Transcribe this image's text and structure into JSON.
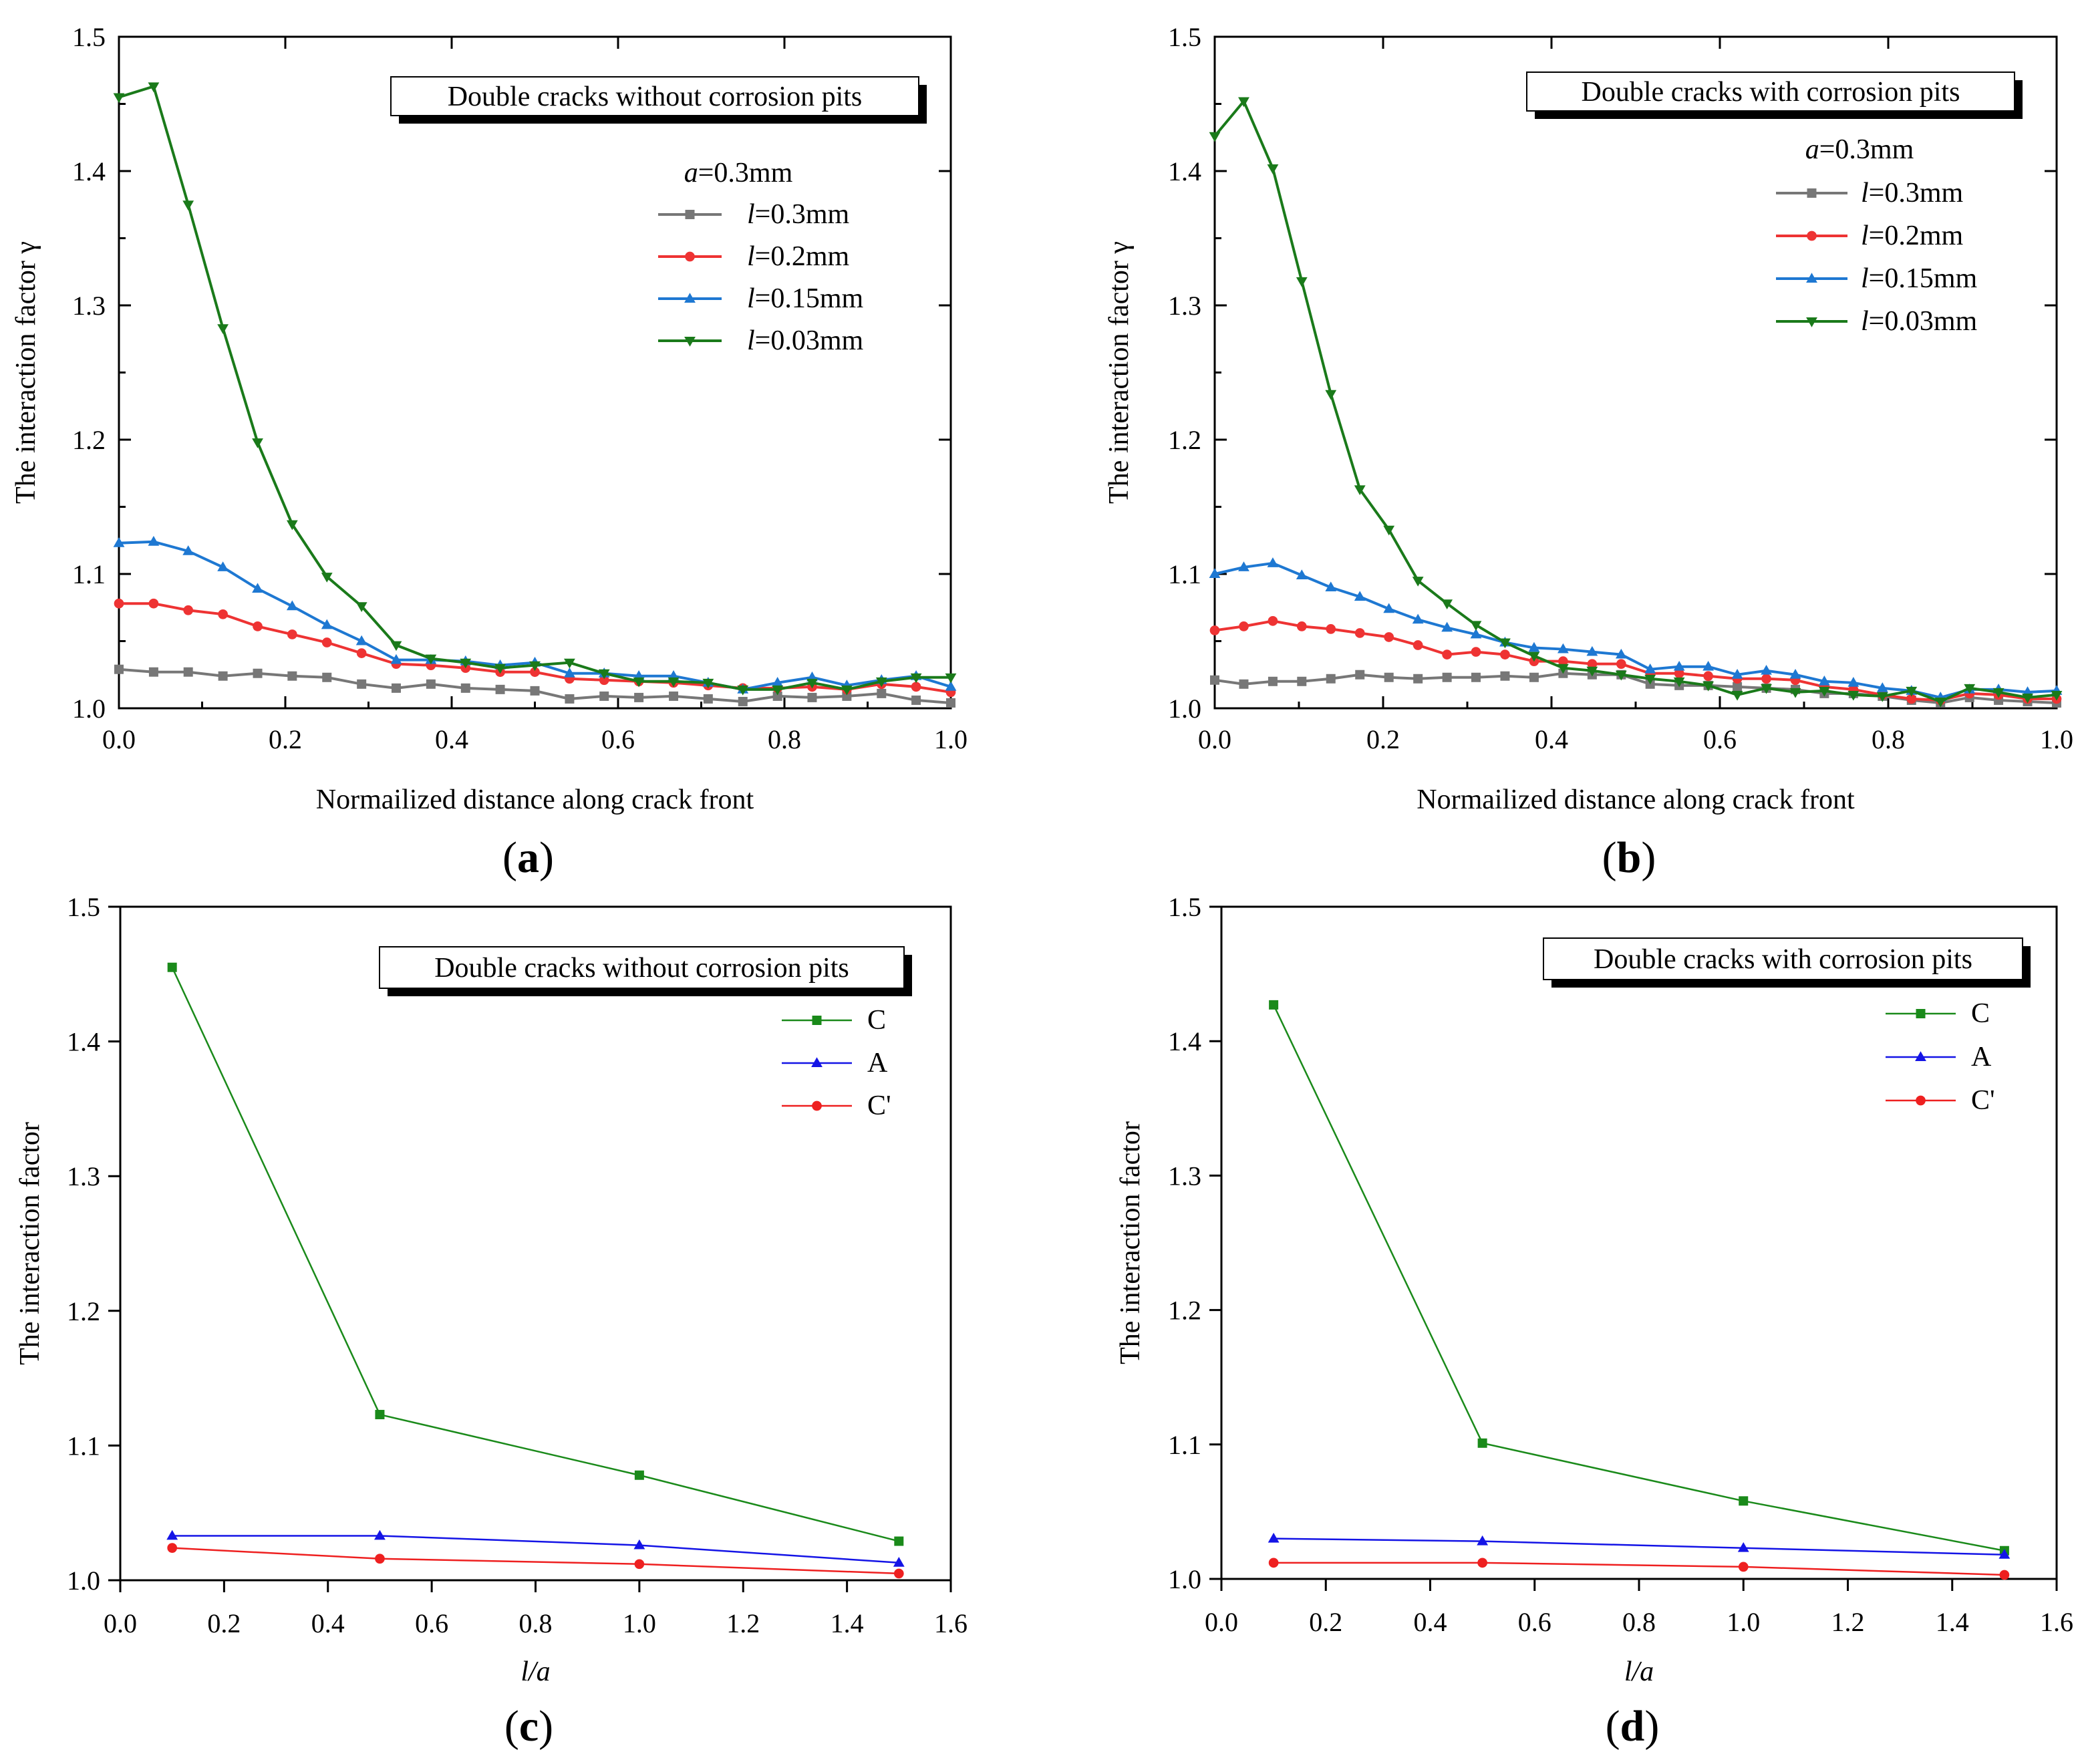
{
  "chart_data": [
    {
      "id": "a",
      "type": "line",
      "panel_label": "a",
      "box_label": "Double cracks without corrosion pits",
      "xlabel": "Normailized distance along crack front",
      "ylabel": "The interaction factor γ",
      "xlim": [
        0,
        1.0
      ],
      "ylim": [
        1.0,
        1.5
      ],
      "xticks": [
        0.0,
        0.2,
        0.4,
        0.6,
        0.8,
        1.0
      ],
      "xtick_labels": [
        "0.0",
        "0.2",
        "0.4",
        "0.6",
        "0.8",
        "1.0"
      ],
      "yticks": [
        1.0,
        1.1,
        1.2,
        1.3,
        1.4,
        1.5
      ],
      "ytick_labels": [
        "1.0",
        "1.1",
        "1.2",
        "1.3",
        "1.4",
        "1.5"
      ],
      "legend_header": {
        "italic": "a",
        "rest": "=0.3mm"
      },
      "x": [
        0,
        0.0417,
        0.0833,
        0.125,
        0.1667,
        0.2083,
        0.25,
        0.2917,
        0.3333,
        0.375,
        0.4167,
        0.4583,
        0.5,
        0.5417,
        0.5833,
        0.625,
        0.6667,
        0.7083,
        0.75,
        0.7917,
        0.8333,
        0.875,
        0.9167,
        0.9583,
        1.0
      ],
      "series": [
        {
          "name": "l=0.3mm",
          "italic": "l",
          "rest": "=0.3mm",
          "color": "#777777",
          "marker": "square",
          "values": [
            1.029,
            1.027,
            1.027,
            1.024,
            1.026,
            1.024,
            1.023,
            1.018,
            1.015,
            1.018,
            1.015,
            1.014,
            1.013,
            1.007,
            1.009,
            1.008,
            1.009,
            1.007,
            1.005,
            1.009,
            1.008,
            1.009,
            1.011,
            1.006,
            1.004
          ]
        },
        {
          "name": "l=0.2mm",
          "italic": "l",
          "rest": "=0.2mm",
          "color": "#ee3333",
          "marker": "circle",
          "values": [
            1.078,
            1.078,
            1.073,
            1.07,
            1.061,
            1.055,
            1.049,
            1.041,
            1.033,
            1.032,
            1.03,
            1.027,
            1.027,
            1.022,
            1.021,
            1.02,
            1.019,
            1.017,
            1.015,
            1.015,
            1.016,
            1.014,
            1.018,
            1.016,
            1.012
          ]
        },
        {
          "name": "l=0.15mm",
          "italic": "l",
          "rest": "=0.15mm",
          "color": "#1e78d2",
          "marker": "triangle-up",
          "values": [
            1.123,
            1.124,
            1.117,
            1.105,
            1.089,
            1.076,
            1.062,
            1.05,
            1.036,
            1.036,
            1.035,
            1.032,
            1.034,
            1.026,
            1.026,
            1.024,
            1.024,
            1.019,
            1.014,
            1.019,
            1.023,
            1.017,
            1.021,
            1.024,
            1.016
          ]
        },
        {
          "name": "l=0.03mm",
          "italic": "l",
          "rest": "=0.03mm",
          "color": "#1a7a1a",
          "marker": "triangle-down",
          "values": [
            1.455,
            1.463,
            1.375,
            1.283,
            1.198,
            1.137,
            1.098,
            1.076,
            1.047,
            1.037,
            1.034,
            1.03,
            1.032,
            1.034,
            1.026,
            1.02,
            1.02,
            1.019,
            1.014,
            1.014,
            1.019,
            1.014,
            1.02,
            1.023,
            1.023
          ]
        }
      ]
    },
    {
      "id": "b",
      "type": "line",
      "panel_label": "b",
      "box_label": "Double cracks with corrosion pits",
      "xlabel": "Normailized distance along crack front",
      "ylabel": "The interaction factor γ",
      "xlim": [
        0,
        1.0
      ],
      "ylim": [
        1.0,
        1.5
      ],
      "xticks": [
        0.0,
        0.2,
        0.4,
        0.6,
        0.8,
        1.0
      ],
      "xtick_labels": [
        "0.0",
        "0.2",
        "0.4",
        "0.6",
        "0.8",
        "1.0"
      ],
      "yticks": [
        1.0,
        1.1,
        1.2,
        1.3,
        1.4,
        1.5
      ],
      "ytick_labels": [
        "1.0",
        "1.1",
        "1.2",
        "1.3",
        "1.4",
        "1.5"
      ],
      "legend_header": {
        "italic": "a",
        "rest": "=0.3mm"
      },
      "x": [
        0,
        0.0345,
        0.069,
        0.1034,
        0.1379,
        0.1724,
        0.2069,
        0.2414,
        0.2759,
        0.3103,
        0.3448,
        0.3793,
        0.4138,
        0.4483,
        0.4828,
        0.5172,
        0.5517,
        0.5862,
        0.6207,
        0.6552,
        0.6897,
        0.7241,
        0.7586,
        0.7931,
        0.8276,
        0.8621,
        0.8966,
        0.931,
        0.9655,
        1.0
      ],
      "series": [
        {
          "name": "l=0.3mm",
          "italic": "l",
          "rest": "=0.3mm",
          "color": "#777777",
          "marker": "square",
          "values": [
            1.021,
            1.018,
            1.02,
            1.02,
            1.022,
            1.025,
            1.023,
            1.022,
            1.023,
            1.023,
            1.024,
            1.023,
            1.026,
            1.025,
            1.025,
            1.018,
            1.017,
            1.017,
            1.016,
            1.015,
            1.014,
            1.011,
            1.011,
            1.009,
            1.006,
            1.004,
            1.008,
            1.006,
            1.005,
            1.004
          ]
        },
        {
          "name": "l=0.2mm",
          "italic": "l",
          "rest": "=0.2mm",
          "color": "#ee3333",
          "marker": "circle",
          "values": [
            1.058,
            1.061,
            1.065,
            1.061,
            1.059,
            1.056,
            1.053,
            1.047,
            1.04,
            1.042,
            1.04,
            1.035,
            1.035,
            1.033,
            1.033,
            1.026,
            1.026,
            1.024,
            1.022,
            1.022,
            1.021,
            1.016,
            1.014,
            1.01,
            1.007,
            1.006,
            1.011,
            1.01,
            1.007,
            1.007
          ]
        },
        {
          "name": "l=0.15mm",
          "italic": "l",
          "rest": "=0.15mm",
          "color": "#1e78d2",
          "marker": "triangle-up",
          "values": [
            1.1,
            1.105,
            1.108,
            1.099,
            1.09,
            1.083,
            1.074,
            1.066,
            1.06,
            1.055,
            1.049,
            1.045,
            1.044,
            1.042,
            1.04,
            1.029,
            1.031,
            1.031,
            1.025,
            1.028,
            1.025,
            1.02,
            1.019,
            1.015,
            1.013,
            1.008,
            1.014,
            1.014,
            1.012,
            1.013
          ]
        },
        {
          "name": "l=0.03mm",
          "italic": "l",
          "rest": "=0.03mm",
          "color": "#1a7a1a",
          "marker": "triangle-down",
          "values": [
            1.426,
            1.452,
            1.402,
            1.318,
            1.234,
            1.163,
            1.133,
            1.095,
            1.078,
            1.062,
            1.049,
            1.039,
            1.03,
            1.028,
            1.025,
            1.022,
            1.02,
            1.017,
            1.01,
            1.015,
            1.012,
            1.013,
            1.01,
            1.009,
            1.013,
            1.005,
            1.015,
            1.012,
            1.008,
            1.01
          ]
        }
      ]
    },
    {
      "id": "c",
      "type": "line",
      "panel_label": "c",
      "box_label": "Double cracks without corrosion pits",
      "xlabel": "l/a",
      "ylabel": "The interaction factor",
      "xlim": [
        0,
        1.6
      ],
      "ylim": [
        1.0,
        1.5
      ],
      "xticks": [
        0.0,
        0.2,
        0.4,
        0.6,
        0.8,
        1.0,
        1.2,
        1.4,
        1.6
      ],
      "xtick_labels": [
        "0.0",
        "0.2",
        "0.4",
        "0.6",
        "0.8",
        "1.0",
        "1.2",
        "1.4",
        "1.6"
      ],
      "yticks": [
        1.0,
        1.1,
        1.2,
        1.3,
        1.4,
        1.5
      ],
      "ytick_labels": [
        "1.0",
        "1.1",
        "1.2",
        "1.3",
        "1.4",
        "1.5"
      ],
      "x": [
        0.1,
        0.5,
        1.0,
        1.5
      ],
      "series": [
        {
          "name": "C",
          "color": "#1a8a1a",
          "marker": "square",
          "values": [
            1.455,
            1.123,
            1.078,
            1.029
          ]
        },
        {
          "name": "A",
          "color": "#1414e6",
          "marker": "triangle-up",
          "values": [
            1.033,
            1.033,
            1.026,
            1.013
          ]
        },
        {
          "name": "C'",
          "color": "#ee2020",
          "marker": "circle",
          "values": [
            1.024,
            1.016,
            1.012,
            1.005
          ]
        }
      ]
    },
    {
      "id": "d",
      "type": "line",
      "panel_label": "d",
      "box_label": "Double cracks with corrosion pits",
      "xlabel": "l/a",
      "ylabel": "The interaction factor",
      "xlim": [
        0,
        1.6
      ],
      "ylim": [
        1.0,
        1.5
      ],
      "xticks": [
        0.0,
        0.2,
        0.4,
        0.6,
        0.8,
        1.0,
        1.2,
        1.4,
        1.6
      ],
      "xtick_labels": [
        "0.0",
        "0.2",
        "0.4",
        "0.6",
        "0.8",
        "1.0",
        "1.2",
        "1.4",
        "1.6"
      ],
      "yticks": [
        1.0,
        1.1,
        1.2,
        1.3,
        1.4,
        1.5
      ],
      "ytick_labels": [
        "1.0",
        "1.1",
        "1.2",
        "1.3",
        "1.4",
        "1.5"
      ],
      "x": [
        0.1,
        0.5,
        1.0,
        1.5
      ],
      "series": [
        {
          "name": "C",
          "color": "#1a8a1a",
          "marker": "square",
          "values": [
            1.427,
            1.101,
            1.058,
            1.021
          ]
        },
        {
          "name": "A",
          "color": "#1414e6",
          "marker": "triangle-up",
          "values": [
            1.03,
            1.028,
            1.023,
            1.018
          ]
        },
        {
          "name": "C'",
          "color": "#ee2020",
          "marker": "circle",
          "values": [
            1.012,
            1.012,
            1.009,
            1.003
          ]
        }
      ]
    }
  ]
}
